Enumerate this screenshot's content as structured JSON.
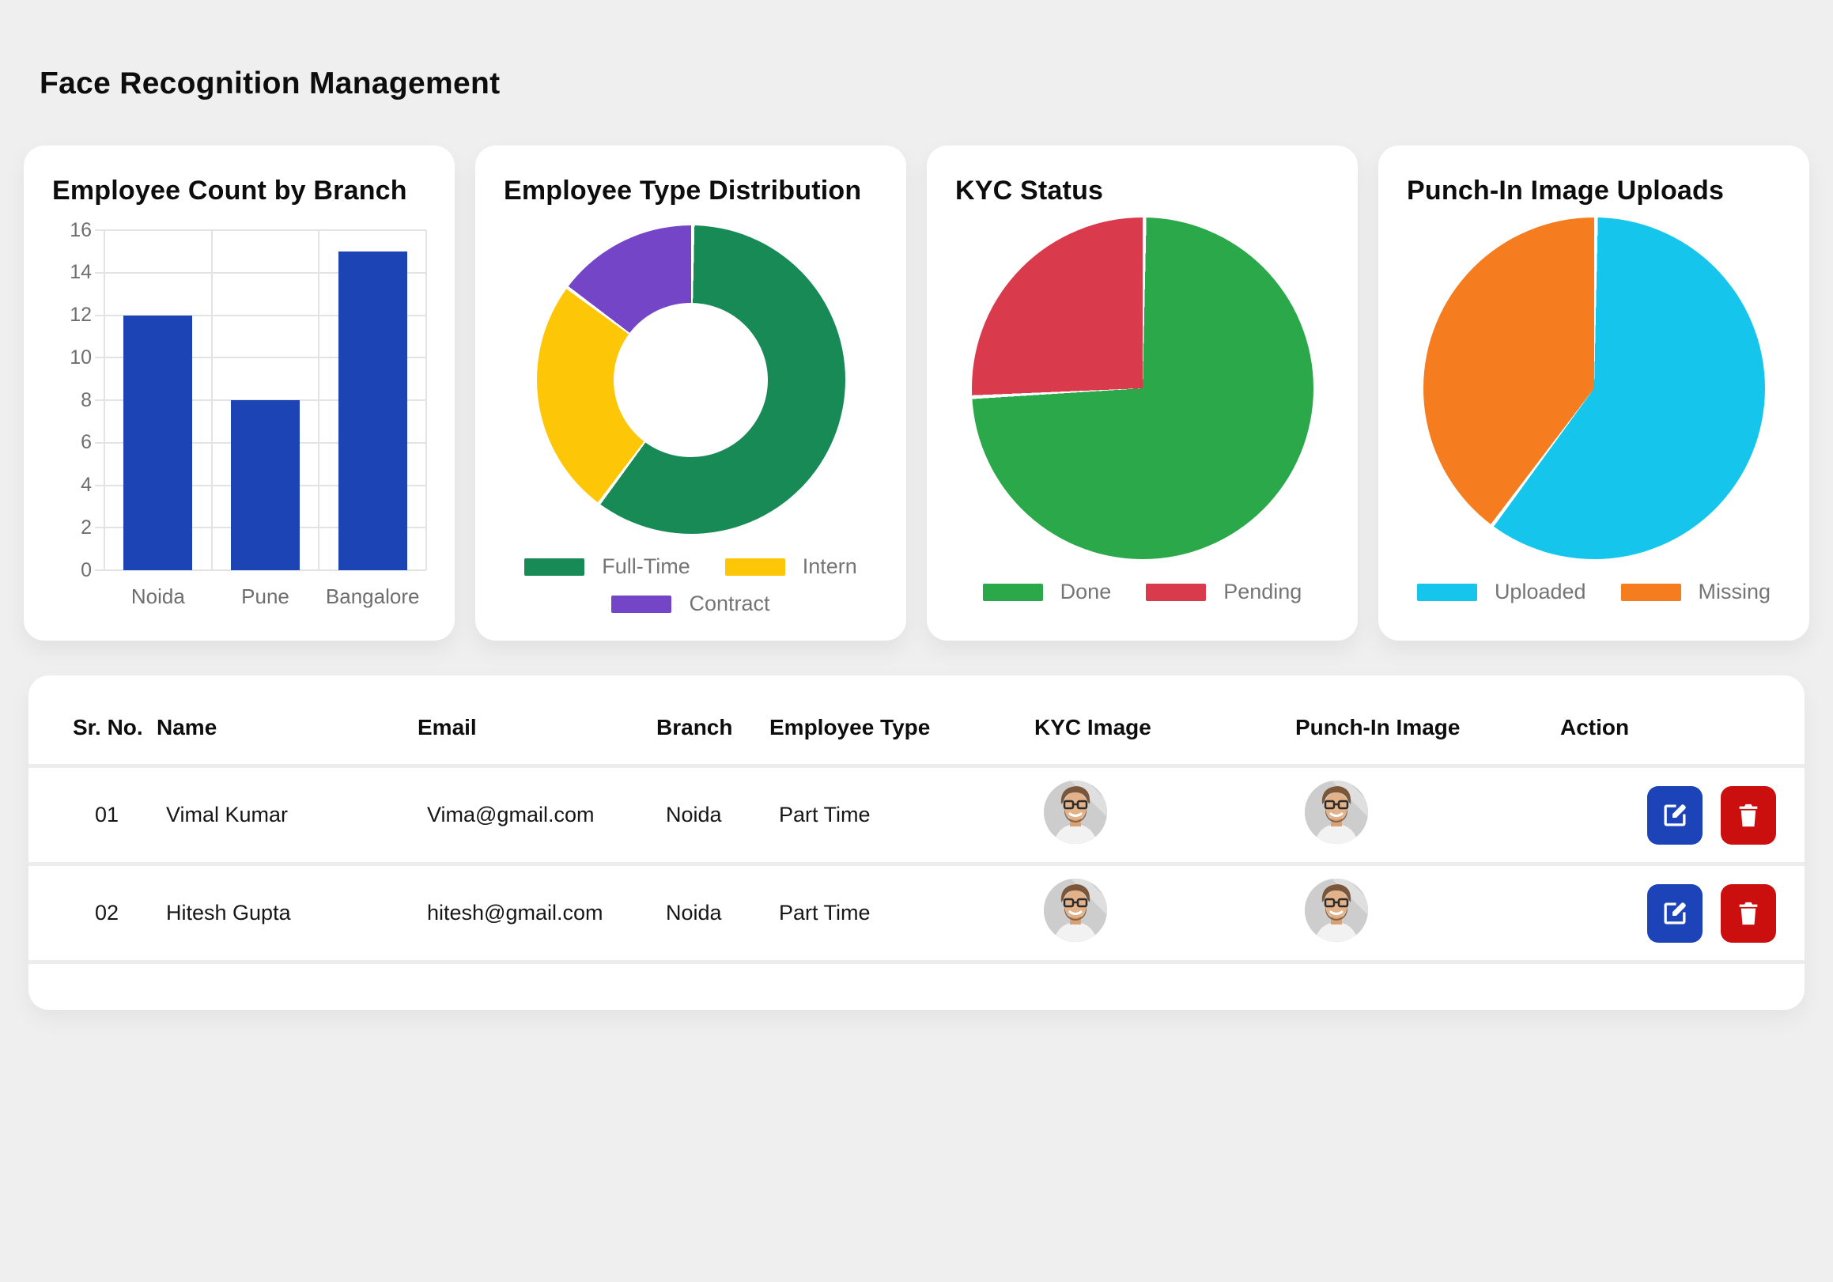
{
  "page": {
    "title": "Face Recognition Management",
    "background_color": "#efefef",
    "card_color": "#ffffff"
  },
  "chart_data": [
    {
      "type": "bar",
      "title": "Employee Count by Branch",
      "categories": [
        "Noida",
        "Pune",
        "Bangalore"
      ],
      "values": [
        12,
        8,
        15
      ],
      "xlabel": "",
      "ylabel": "",
      "ylim": [
        0,
        16
      ],
      "ytick_step": 2,
      "grid": true,
      "legend": false,
      "bar_color": "#1d44b4",
      "tick_color": "#6e6e6e"
    },
    {
      "type": "pie",
      "subtype": "donut",
      "title": "Employee Type Distribution",
      "labels": [
        "Full-Time",
        "Intern",
        "Contract"
      ],
      "values": [
        60,
        25,
        15
      ],
      "unit": "percent-estimated",
      "colors": [
        "#178a56",
        "#fdc606",
        "#7445c6"
      ],
      "hole_ratio": 0.5,
      "legend_position": "bottom"
    },
    {
      "type": "pie",
      "title": "KYC Status",
      "labels": [
        "Done",
        "Pending"
      ],
      "values": [
        74,
        26
      ],
      "unit": "percent-estimated",
      "colors": [
        "#2aa84a",
        "#d93a4c"
      ],
      "legend_position": "bottom"
    },
    {
      "type": "pie",
      "title": "Punch-In Image Uploads",
      "labels": [
        "Uploaded",
        "Missing"
      ],
      "values": [
        60,
        40
      ],
      "unit": "percent-estimated",
      "colors": [
        "#15c5ec",
        "#f57d1f"
      ],
      "legend_position": "bottom"
    }
  ],
  "table": {
    "headers": [
      "Sr. No.",
      "Name",
      "Email",
      "Branch",
      "Employee Type",
      "KYC Image",
      "Punch-In Image",
      "Action"
    ],
    "rows": [
      {
        "sr": "01",
        "name": "Vimal Kumar",
        "email": "Vima@gmail.com",
        "branch": "Noida",
        "type": "Part Time"
      },
      {
        "sr": "02",
        "name": "Hitesh Gupta",
        "email": "hitesh@gmail.com",
        "branch": "Noida",
        "type": "Part Time"
      }
    ],
    "actions": {
      "edit_icon": "pencil-square",
      "delete_icon": "trash",
      "edit_color": "#1d43b8",
      "delete_color": "#cb0e0e"
    }
  },
  "colors": {
    "divider": "#ededed",
    "muted_text": "#6e6e6e",
    "legend_text": "#757575"
  }
}
